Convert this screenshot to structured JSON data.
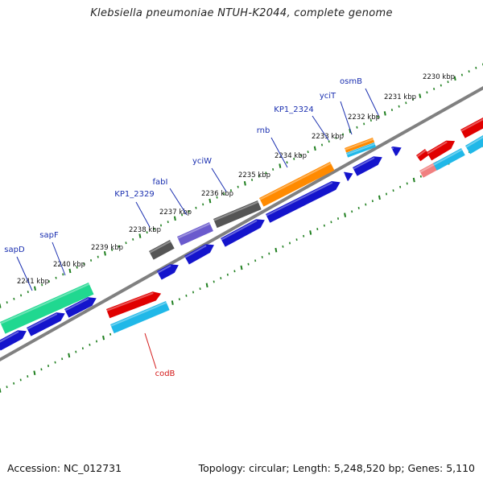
{
  "title": "Klebsiella pneumoniae NTUH-K2044, complete genome",
  "footer": {
    "accession": "Accession: NC_012731",
    "summary": "Topology: circular; Length: 5,248,520 bp; Genes: 5,110"
  },
  "axis": {
    "ticks": [
      {
        "label": "2230 kbp"
      },
      {
        "label": "2231 kbp"
      },
      {
        "label": "2232 kbp"
      },
      {
        "label": "2233 kbp"
      },
      {
        "label": "2234 kbp"
      },
      {
        "label": "2235 kbp"
      },
      {
        "label": "2236 kbp"
      },
      {
        "label": "2237 kbp"
      },
      {
        "label": "2238 kbp"
      },
      {
        "label": "2239 kbp"
      },
      {
        "label": "2240 kbp"
      },
      {
        "label": "2241 kbp"
      }
    ]
  },
  "genes": [
    {
      "name": "osmB",
      "color": "#1a2fb0"
    },
    {
      "name": "yciT",
      "color": "#1a2fb0"
    },
    {
      "name": "KP1_2324",
      "color": "#1a2fb0"
    },
    {
      "name": "rnb",
      "color": "#1a2fb0"
    },
    {
      "name": "yciW",
      "color": "#1a2fb0"
    },
    {
      "name": "fabI",
      "color": "#1a2fb0"
    },
    {
      "name": "KP1_2329",
      "color": "#1a2fb0"
    },
    {
      "name": "sapF",
      "color": "#1a2fb0"
    },
    {
      "name": "sapD",
      "color": "#1a2fb0"
    },
    {
      "name": "codB",
      "color": "#d41a1a"
    }
  ],
  "colors": {
    "backbone": "#808080",
    "tick_green": "#1f7f1f",
    "blue": "#1414cc",
    "orange": "#ff8a00",
    "gray": "#555555",
    "purple": "#6a5acd",
    "teal": "#20d890",
    "cyan": "#20b8e8",
    "red": "#e00000",
    "pink": "#f08080"
  }
}
